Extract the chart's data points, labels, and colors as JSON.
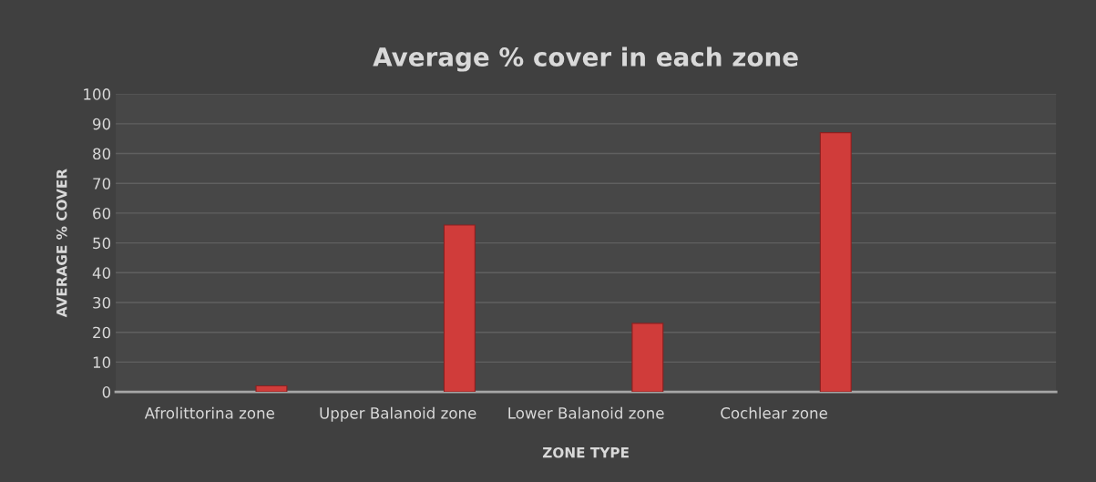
{
  "chart_data": {
    "type": "bar",
    "title": "Average % cover in each zone",
    "xlabel": "ZONE TYPE",
    "ylabel": "AVERAGE % COVER",
    "categories": [
      "Afrolittorina zone",
      "Upper Balanoid zone",
      "Lower Balanoid zone",
      "Cochlear zone",
      null
    ],
    "series": [
      {
        "values": [
          null,
          null,
          null,
          null,
          null
        ]
      },
      {
        "values": [
          null,
          null,
          null,
          null,
          null
        ]
      },
      {
        "values": [
          null,
          null,
          null,
          null,
          null
        ]
      },
      {
        "values": [
          null,
          null,
          null,
          null,
          null
        ]
      },
      {
        "color": "#d03c3a",
        "values": [
          2,
          56,
          23,
          87,
          null
        ]
      }
    ],
    "ylim": [
      0,
      100
    ],
    "yticks": [
      0,
      10,
      20,
      30,
      40,
      50,
      60,
      70,
      80,
      90,
      100
    ],
    "grid": "y",
    "legend": false
  }
}
